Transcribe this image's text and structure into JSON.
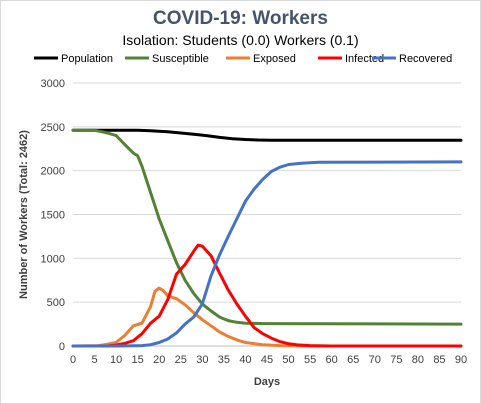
{
  "chart_data": {
    "type": "line",
    "title": "COVID-19: Workers",
    "subtitle": "Isolation: Students (0.0) Workers (0.1)",
    "xlabel": "Days",
    "ylabel": "Number of Workers (Total: 2462)",
    "xlim": [
      0,
      90
    ],
    "ylim": [
      0,
      3000
    ],
    "xticks": [
      0,
      5,
      10,
      15,
      20,
      25,
      30,
      35,
      40,
      45,
      50,
      55,
      60,
      65,
      70,
      75,
      80,
      85,
      90
    ],
    "yticks": [
      0,
      500,
      1000,
      1500,
      2000,
      2500,
      3000
    ],
    "grid": "horizontal",
    "legend": "top",
    "series": [
      {
        "name": "Population",
        "color": "#000000",
        "points": [
          [
            0,
            2462
          ],
          [
            10,
            2462
          ],
          [
            15,
            2462
          ],
          [
            18,
            2455
          ],
          [
            22,
            2445
          ],
          [
            25,
            2430
          ],
          [
            28,
            2415
          ],
          [
            31,
            2400
          ],
          [
            34,
            2380
          ],
          [
            37,
            2365
          ],
          [
            40,
            2355
          ],
          [
            43,
            2350
          ],
          [
            46,
            2348
          ],
          [
            90,
            2348
          ]
        ]
      },
      {
        "name": "Susceptible",
        "color": "#548235",
        "points": [
          [
            0,
            2462
          ],
          [
            5,
            2462
          ],
          [
            8,
            2430
          ],
          [
            10,
            2400
          ],
          [
            12,
            2300
          ],
          [
            14,
            2200
          ],
          [
            15,
            2170
          ],
          [
            16,
            2050
          ],
          [
            18,
            1750
          ],
          [
            20,
            1450
          ],
          [
            22,
            1200
          ],
          [
            24,
            950
          ],
          [
            26,
            750
          ],
          [
            28,
            600
          ],
          [
            30,
            480
          ],
          [
            32,
            400
          ],
          [
            34,
            330
          ],
          [
            36,
            290
          ],
          [
            38,
            270
          ],
          [
            40,
            260
          ],
          [
            44,
            255
          ],
          [
            90,
            250
          ]
        ]
      },
      {
        "name": "Exposed",
        "color": "#ed7d31",
        "points": [
          [
            0,
            0
          ],
          [
            6,
            5
          ],
          [
            8,
            20
          ],
          [
            10,
            40
          ],
          [
            12,
            120
          ],
          [
            14,
            230
          ],
          [
            16,
            260
          ],
          [
            18,
            450
          ],
          [
            19,
            620
          ],
          [
            20,
            660
          ],
          [
            21,
            630
          ],
          [
            22,
            570
          ],
          [
            24,
            540
          ],
          [
            26,
            470
          ],
          [
            28,
            380
          ],
          [
            30,
            300
          ],
          [
            32,
            230
          ],
          [
            34,
            160
          ],
          [
            36,
            110
          ],
          [
            38,
            70
          ],
          [
            40,
            40
          ],
          [
            44,
            15
          ],
          [
            48,
            5
          ],
          [
            55,
            0
          ],
          [
            90,
            0
          ]
        ]
      },
      {
        "name": "Infected",
        "color": "#ff0000",
        "points": [
          [
            0,
            0
          ],
          [
            8,
            0
          ],
          [
            10,
            10
          ],
          [
            12,
            30
          ],
          [
            14,
            60
          ],
          [
            16,
            140
          ],
          [
            18,
            260
          ],
          [
            20,
            340
          ],
          [
            22,
            530
          ],
          [
            24,
            820
          ],
          [
            26,
            930
          ],
          [
            28,
            1080
          ],
          [
            29,
            1150
          ],
          [
            30,
            1140
          ],
          [
            32,
            1030
          ],
          [
            34,
            830
          ],
          [
            36,
            640
          ],
          [
            38,
            480
          ],
          [
            40,
            340
          ],
          [
            42,
            210
          ],
          [
            44,
            140
          ],
          [
            46,
            90
          ],
          [
            48,
            50
          ],
          [
            50,
            25
          ],
          [
            52,
            12
          ],
          [
            55,
            5
          ],
          [
            60,
            0
          ],
          [
            90,
            0
          ]
        ]
      },
      {
        "name": "Recovered",
        "color": "#4472c4",
        "points": [
          [
            0,
            0
          ],
          [
            10,
            0
          ],
          [
            16,
            5
          ],
          [
            18,
            15
          ],
          [
            20,
            40
          ],
          [
            22,
            80
          ],
          [
            24,
            150
          ],
          [
            26,
            250
          ],
          [
            28,
            330
          ],
          [
            30,
            480
          ],
          [
            32,
            800
          ],
          [
            34,
            1040
          ],
          [
            36,
            1250
          ],
          [
            38,
            1450
          ],
          [
            40,
            1650
          ],
          [
            42,
            1790
          ],
          [
            44,
            1900
          ],
          [
            46,
            1990
          ],
          [
            48,
            2040
          ],
          [
            50,
            2070
          ],
          [
            53,
            2085
          ],
          [
            57,
            2095
          ],
          [
            90,
            2100
          ]
        ]
      }
    ]
  }
}
